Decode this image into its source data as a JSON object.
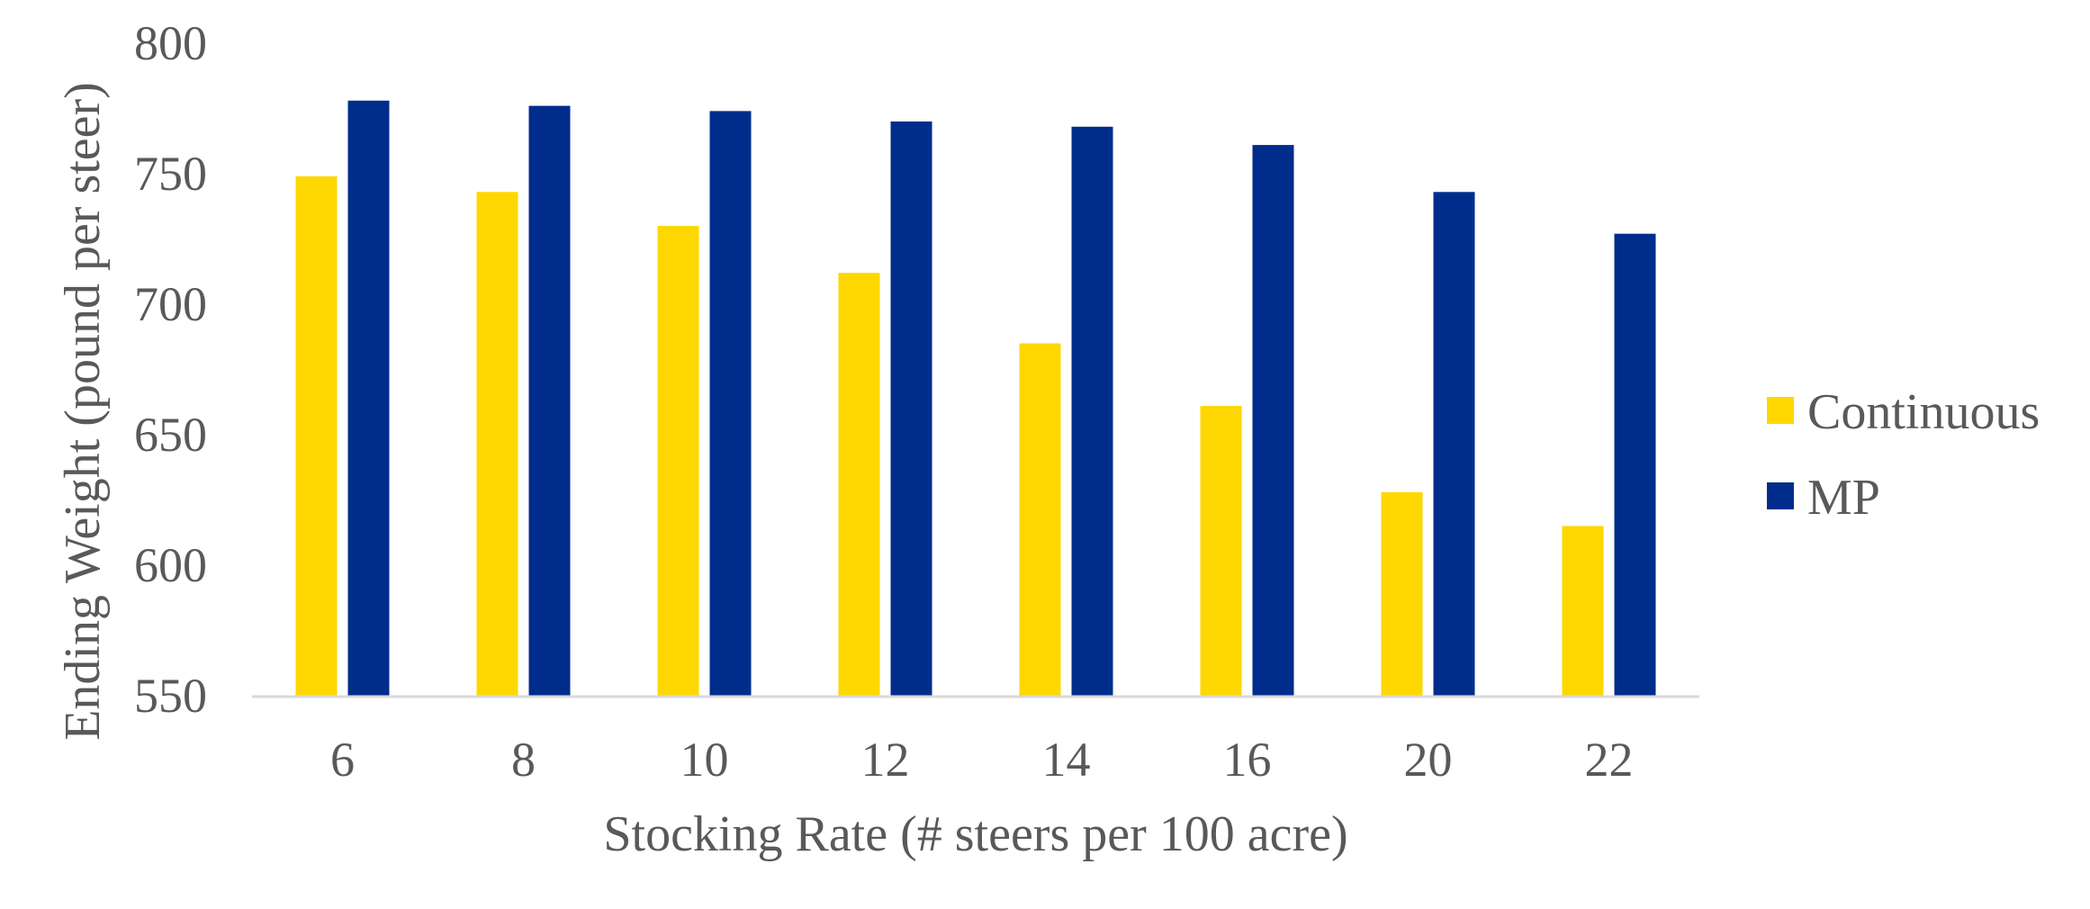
{
  "chart_data": {
    "type": "bar",
    "title": "",
    "xlabel": "Stocking Rate (# steers per 100 acre)",
    "ylabel": "Ending Weight (pound per steer)",
    "categories": [
      "6",
      "8",
      "10",
      "12",
      "14",
      "16",
      "20",
      "22"
    ],
    "ylim": [
      550,
      800
    ],
    "yticks": [
      550,
      600,
      650,
      700,
      750,
      800
    ],
    "grid": false,
    "legend_position": "right",
    "series": [
      {
        "name": "Continuous",
        "color": "#FFD700",
        "values": [
          749,
          743,
          730,
          712,
          685,
          661,
          628,
          615
        ]
      },
      {
        "name": "MP",
        "color": "#002D8C",
        "values": [
          778,
          776,
          774,
          770,
          768,
          761,
          743,
          727
        ]
      }
    ]
  }
}
